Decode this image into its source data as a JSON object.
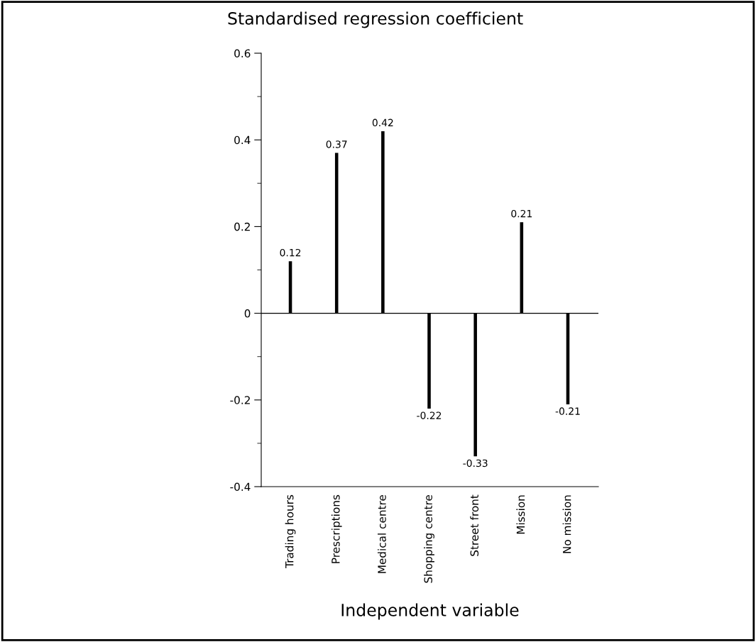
{
  "chart_data": {
    "type": "bar",
    "ylabel": "Standardised regression coefficient",
    "xlabel": "Independent variable",
    "categories": [
      "Trading hours",
      "Prescriptions",
      "Medical centre",
      "Shopping centre",
      "Street front",
      "Mission",
      "No mission"
    ],
    "values": [
      0.12,
      0.37,
      0.42,
      -0.22,
      -0.33,
      0.21,
      -0.21
    ],
    "color": "#000000",
    "ylim": [
      -0.4,
      0.6
    ],
    "yticks": [
      -0.4,
      {
        "value": -0.3,
        "label": null
      },
      -0.2,
      {
        "value": -0.1,
        "label": null
      },
      0,
      {
        "value": 0.1,
        "label": null
      },
      0.2,
      {
        "value": 0.3,
        "label": null
      },
      0.4,
      {
        "value": 0.5,
        "label": null
      },
      0.6
    ],
    "data_labels": true,
    "legend": false
  }
}
